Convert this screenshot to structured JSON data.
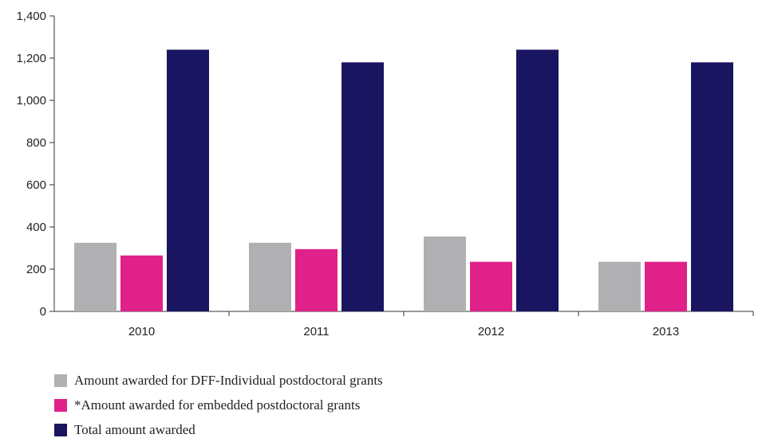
{
  "chart_data": {
    "type": "bar",
    "categories": [
      "2010",
      "2011",
      "2012",
      "2013"
    ],
    "series": [
      {
        "name": "Amount awarded for DFF-Individual postdoctoral grants",
        "color": "#b0b0b3",
        "values": [
          325,
          325,
          355,
          235
        ]
      },
      {
        "name": "*Amount awarded for embedded postdoctoral grants",
        "color": "#e0218a",
        "values": [
          265,
          295,
          235,
          235
        ]
      },
      {
        "name": "Total amount awarded",
        "color": "#1a1560",
        "values": [
          1240,
          1180,
          1240,
          1180
        ]
      }
    ],
    "yticks": [
      "0",
      "200",
      "400",
      "600",
      "800",
      "1,000",
      "1,200",
      "1,400"
    ],
    "ylim": [
      0,
      1400
    ],
    "title": "",
    "xlabel": "",
    "ylabel": "",
    "grid": false,
    "legend_position": "bottom-left"
  }
}
